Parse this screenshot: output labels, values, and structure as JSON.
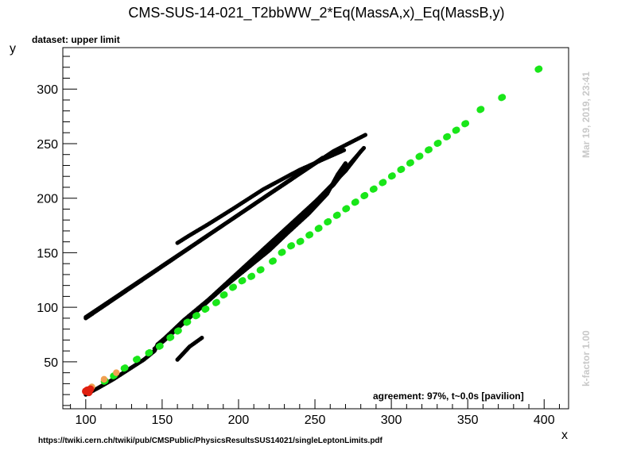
{
  "chart_data": {
    "type": "scatter",
    "title": "CMS-SUS-14-021_T2bbWW_2*Eq(MassA,x)_Eq(MassB,y)",
    "dataset_label": "dataset: upper limit",
    "xlabel": "x",
    "ylabel": "y",
    "xlim": [
      85,
      416
    ],
    "ylim": [
      7,
      338
    ],
    "x_ticks": [
      100,
      150,
      200,
      250,
      300,
      350,
      400
    ],
    "y_ticks": [
      50,
      100,
      150,
      200,
      250,
      300
    ],
    "grid": false,
    "agreement_text": "agreement: 97%, t~0.0s [pavilion]",
    "timestamp": "Mar 19, 2019, 23:41",
    "kfactor": "k-factor 1.00",
    "url": "https://twiki.cern.ch/twiki/pub/CMSPublic/PhysicsResultsSUS14021/singleLeptonLimits.pdf",
    "colors": {
      "excluded_black": "#000000",
      "green": "#19e619",
      "orange": "#f0a050",
      "red": "#e02010"
    },
    "series": [
      {
        "color": "excluded_black",
        "marker_size": 2.6,
        "segments": [
          [
            [
              100,
              90
            ],
            [
              255,
              237
            ]
          ],
          [
            [
              100,
              91
            ],
            [
              262,
              243
            ],
            [
              283,
              258
            ]
          ],
          [
            [
              269,
              244
            ],
            [
              240,
              226
            ],
            [
              216,
              208
            ],
            [
              196,
              190
            ],
            [
              180,
              176
            ],
            [
              168,
              166
            ],
            [
              160,
              159
            ]
          ],
          [
            [
              100,
              20
            ],
            [
              108,
              26
            ],
            [
              118,
              34
            ],
            [
              128,
              43
            ],
            [
              138,
              52
            ],
            [
              145,
              60
            ],
            [
              147,
              66
            ],
            [
              152,
              72
            ],
            [
              158,
              80
            ],
            [
              164,
              88
            ],
            [
              176,
              102
            ],
            [
              190,
              118
            ],
            [
              205,
              135
            ],
            [
              220,
              152
            ],
            [
              232,
              168
            ],
            [
              246,
              186
            ],
            [
              258,
              204
            ],
            [
              265,
              222
            ],
            [
              270,
              232
            ]
          ],
          [
            [
              145,
              62
            ],
            [
              155,
              74
            ],
            [
              165,
              88
            ],
            [
              178,
              104
            ],
            [
              192,
              122
            ],
            [
              206,
              140
            ],
            [
              220,
              158
            ],
            [
              234,
              176
            ],
            [
              248,
              194
            ],
            [
              262,
              212
            ],
            [
              272,
              230
            ],
            [
              282,
              246
            ]
          ],
          [
            [
              147,
              66
            ],
            [
              162,
              83
            ],
            [
              178,
              103
            ],
            [
              194,
              123
            ],
            [
              210,
              143
            ],
            [
              226,
              163
            ],
            [
              242,
              185
            ],
            [
              256,
              205
            ],
            [
              270,
              225
            ],
            [
              280,
              243
            ]
          ],
          [
            [
              160,
              52
            ],
            [
              168,
              64
            ],
            [
              176,
              72
            ]
          ]
        ],
        "step": 1.2
      },
      {
        "color": "green",
        "marker_size": 4.2,
        "points": [
          [
            112,
            32
          ],
          [
            118,
            37
          ],
          [
            125,
            44
          ],
          [
            133,
            52
          ],
          [
            141,
            58
          ],
          [
            148,
            64
          ],
          [
            155,
            72
          ],
          [
            160,
            78
          ],
          [
            166,
            86
          ],
          [
            172,
            92
          ],
          [
            178,
            98
          ],
          [
            185,
            104
          ],
          [
            190,
            111
          ],
          [
            196,
            118
          ],
          [
            202,
            124
          ],
          [
            208,
            128
          ],
          [
            214,
            134
          ],
          [
            222,
            142
          ],
          [
            228,
            150
          ],
          [
            234,
            156
          ],
          [
            240,
            160
          ],
          [
            246,
            166
          ],
          [
            252,
            172
          ],
          [
            258,
            178
          ],
          [
            264,
            184
          ],
          [
            270,
            190
          ],
          [
            276,
            196
          ],
          [
            282,
            202
          ],
          [
            288,
            208
          ],
          [
            294,
            214
          ],
          [
            300,
            220
          ],
          [
            306,
            226
          ],
          [
            312,
            232
          ],
          [
            318,
            238
          ],
          [
            324,
            244
          ],
          [
            330,
            250
          ],
          [
            336,
            256
          ],
          [
            342,
            262
          ],
          [
            348,
            268
          ],
          [
            358,
            281
          ],
          [
            372,
            292
          ],
          [
            396,
            318
          ]
        ],
        "density": 2
      },
      {
        "color": "orange",
        "marker_size": 4.2,
        "points": [
          [
            104,
            27
          ],
          [
            112,
            34
          ],
          [
            120,
            40
          ]
        ]
      },
      {
        "color": "red",
        "marker_size": 4.8,
        "points": [
          [
            101,
            24
          ],
          [
            102,
            22
          ],
          [
            103,
            25
          ],
          [
            100,
            23
          ]
        ]
      }
    ]
  }
}
